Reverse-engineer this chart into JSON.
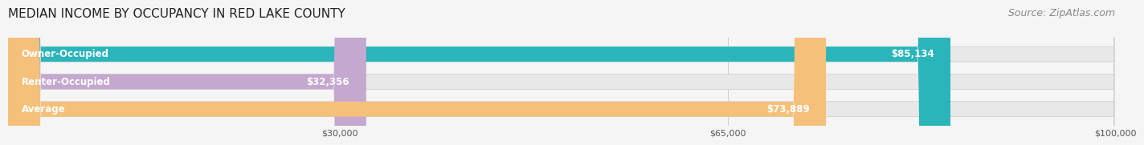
{
  "title": "MEDIAN INCOME BY OCCUPANCY IN RED LAKE COUNTY",
  "source": "Source: ZipAtlas.com",
  "categories": [
    "Owner-Occupied",
    "Renter-Occupied",
    "Average"
  ],
  "values": [
    85134,
    32356,
    73889
  ],
  "value_labels": [
    "$85,134",
    "$32,356",
    "$73,889"
  ],
  "bar_colors": [
    "#2ab5bb",
    "#c4a8d0",
    "#f5c07a"
  ],
  "bar_edge_colors": [
    "#2ab5bb",
    "#c4a8d0",
    "#f5c07a"
  ],
  "xlim": [
    0,
    100000
  ],
  "xtick_values": [
    30000,
    65000,
    100000
  ],
  "xtick_labels": [
    "$30,000",
    "$65,000",
    "$100,000"
  ],
  "background_color": "#f5f5f5",
  "bar_background_color": "#e8e8e8",
  "title_fontsize": 11,
  "source_fontsize": 9,
  "label_fontsize": 8.5,
  "value_fontsize": 8.5,
  "bar_height": 0.55,
  "bar_gap": 0.35
}
